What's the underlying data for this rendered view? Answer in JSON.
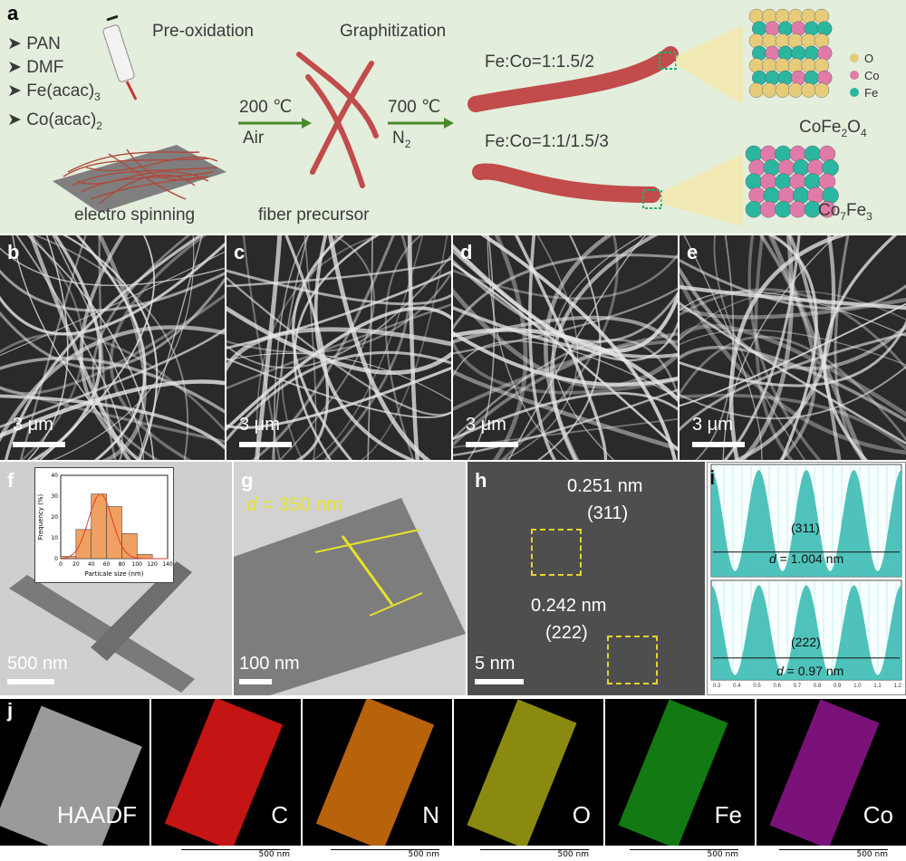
{
  "panels": {
    "a": {
      "label": "a",
      "reagents": [
        "PAN",
        "DMF",
        "Fe(acac)",
        "Co(acac)"
      ],
      "reagent_subs": [
        "",
        "",
        "3",
        "2"
      ],
      "step1_title": "Pre-oxidation",
      "step2_title": "Graphitization",
      "arrow1_temp": "200 ℃",
      "arrow1_gas": "Air",
      "arrow2_temp": "700 ℃",
      "arrow2_gas": "N",
      "arrow2_gas_sub": "2",
      "caption_spin": "electro spinning",
      "caption_precursor": "fiber precursor",
      "ratio_top": "Fe:Co=1:1.5/2",
      "ratio_bottom": "Fe:Co=1:1/1.5/3",
      "legend": [
        "O",
        "Co",
        "Fe"
      ],
      "phase_top": {
        "main": "CoFe",
        "sub1": "2",
        "mid": "O",
        "sub2": "4"
      },
      "phase_bottom": {
        "main": "Co",
        "sub1": "7",
        "mid": "Fe",
        "sub2": "3"
      },
      "colors": {
        "O": "#e6cc7a",
        "Co": "#e07aa8",
        "Fe": "#2ab6a0",
        "fiber": "#c24b4b",
        "arrow": "#4a8a2a"
      }
    },
    "b": {
      "label": "b",
      "scale": "3 μm"
    },
    "c": {
      "label": "c",
      "scale": "3 μm"
    },
    "d": {
      "label": "d",
      "scale": "3 μm"
    },
    "e": {
      "label": "e",
      "scale": "3 μm"
    },
    "f": {
      "label": "f",
      "scale": "500 nm"
    },
    "g": {
      "label": "g",
      "scale": "100 nm",
      "d_italic": "d",
      "d_value": " = 350 nm"
    },
    "h": {
      "label": "h",
      "scale": "5 nm",
      "spacing1": "0.251 nm",
      "plane1": "(311)",
      "spacing2": "0.242 nm",
      "plane2": "(222)"
    },
    "i": {
      "label": "i",
      "plane1": "(311)",
      "d1": " = 1.004 nm",
      "plane2": "(222)",
      "d2": " = 0.97 nm",
      "d_italic": "d",
      "xticks": [
        "0.3",
        "0.4",
        "0.5",
        "0.6",
        "0.7",
        "0.8",
        "0.9",
        "1.0",
        "1.1",
        "1.2"
      ]
    },
    "j": {
      "label": "j",
      "maps": [
        "HAADF",
        "C",
        "N",
        "O",
        "Fe",
        "Co"
      ],
      "scale": "500 nm",
      "map_colors": [
        "#ffffff",
        "#e01818",
        "#e07a10",
        "#e0e010",
        "#18d018",
        "#d018d0"
      ]
    }
  },
  "chart_data": {
    "type": "bar",
    "xlabel": "Particale size (nm)",
    "ylabel": "Frequency (%)",
    "categories": [
      "0",
      "20",
      "40",
      "60",
      "80",
      "100",
      "120"
    ],
    "values": [
      1,
      14,
      31,
      25,
      12,
      2,
      0
    ],
    "xlim": [
      0,
      140
    ],
    "ylim": [
      0,
      40
    ],
    "xticks": [
      "0",
      "20",
      "40",
      "60",
      "80",
      "100",
      "120",
      "140"
    ],
    "yticks": [
      "0",
      "10",
      "20",
      "30",
      "40"
    ]
  }
}
